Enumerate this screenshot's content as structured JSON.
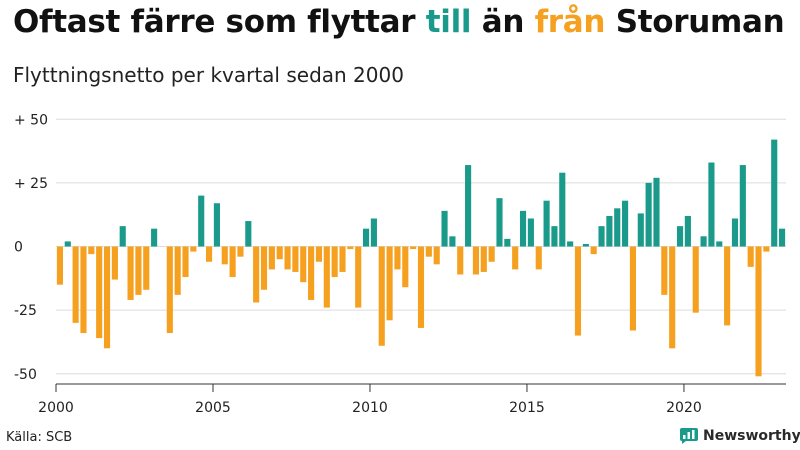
{
  "title": {
    "part1": "Oftast färre som flyttar ",
    "highlight_in": "till",
    "part2": " än ",
    "highlight_out": "från",
    "part3": " Storuman"
  },
  "subtitle": "Flyttningsnetto per kvartal sedan 2000",
  "source": "Källa: SCB",
  "brand": {
    "name": "Newsworthy",
    "icon": "bar-chart-icon"
  },
  "colors": {
    "positive": "#1a9a8a",
    "negative": "#f5a01f",
    "grid": "#dcdcdc",
    "axis": "#333333"
  },
  "chart_data": {
    "type": "bar",
    "title": "Oftast färre som flyttar till än från Storuman",
    "subtitle": "Flyttningsnetto per kvartal sedan 2000",
    "x_start": 2000,
    "periods_per_year": 4,
    "x_ticks": [
      2000,
      2005,
      2010,
      2015,
      2020
    ],
    "y_ticks": [
      {
        "value": 50,
        "label": "+ 50"
      },
      {
        "value": 25,
        "label": "+ 25"
      },
      {
        "value": 0,
        "label": "0"
      },
      {
        "value": -25,
        "label": "-25"
      },
      {
        "value": -50,
        "label": "-50"
      }
    ],
    "ylim": [
      -50,
      50
    ],
    "grid": true,
    "values": [
      -15,
      2,
      -30,
      -34,
      -3,
      -36,
      -40,
      -13,
      8,
      -21,
      -19,
      -17,
      7,
      0,
      -34,
      -19,
      -12,
      -2,
      20,
      -6,
      17,
      -7,
      -12,
      -4,
      10,
      -22,
      -17,
      -9,
      -5,
      -9,
      -10,
      -14,
      -21,
      -6,
      -24,
      -12,
      -10,
      -1,
      -24,
      7,
      11,
      -39,
      -29,
      -9,
      -16,
      -1,
      -32,
      -4,
      -7,
      14,
      4,
      -11,
      32,
      -11,
      -10,
      -6,
      19,
      3,
      -9,
      14,
      11,
      -9,
      18,
      8,
      29,
      2,
      -35,
      1,
      -3,
      8,
      12,
      15,
      18,
      -33,
      13,
      25,
      27,
      -19,
      -40,
      8,
      12,
      -26,
      4,
      33,
      2,
      -31,
      11,
      32,
      -8,
      -51,
      -2,
      42,
      7
    ]
  }
}
